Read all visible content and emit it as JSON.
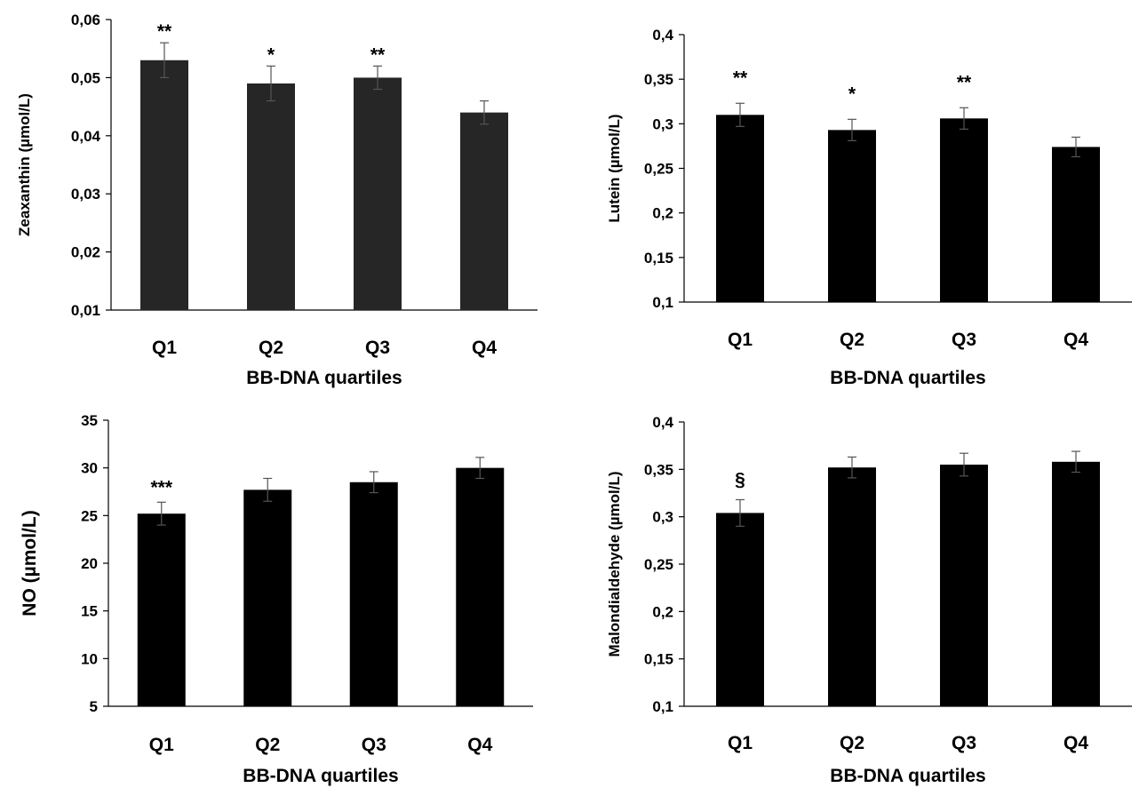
{
  "chart_data": [
    {
      "type": "bar",
      "categories": [
        "Q1",
        "Q2",
        "Q3",
        "Q4"
      ],
      "values": [
        0.053,
        0.049,
        0.05,
        0.044
      ],
      "errors": [
        0.003,
        0.003,
        0.002,
        0.002
      ],
      "annotations": [
        "**",
        "*",
        "**",
        ""
      ],
      "xlabel": "BB-DNA quartiles",
      "ylabel": "Zeaxanthin (µmol/L)",
      "ylim": [
        0.01,
        0.06
      ],
      "yticks": [
        0.01,
        0.02,
        0.03,
        0.04,
        0.05,
        0.06
      ],
      "ytick_labels": [
        "0,01",
        "0,02",
        "0,03",
        "0,04",
        "0,05",
        "0,06"
      ],
      "bar_color": "#262626",
      "grid": false
    },
    {
      "type": "bar",
      "categories": [
        "Q1",
        "Q2",
        "Q3",
        "Q4"
      ],
      "values": [
        0.31,
        0.293,
        0.306,
        0.274
      ],
      "errors": [
        0.013,
        0.012,
        0.012,
        0.011
      ],
      "annotations": [
        "**",
        "*",
        "**",
        ""
      ],
      "xlabel": "BB-DNA quartiles",
      "ylabel": "Lutein  (µmol/L)",
      "ylim": [
        0.1,
        0.4
      ],
      "yticks": [
        0.1,
        0.15,
        0.2,
        0.25,
        0.3,
        0.35,
        0.4
      ],
      "ytick_labels": [
        "0,1",
        "0,15",
        "0,2",
        "0,25",
        "0,3",
        "0,35",
        "0,4"
      ],
      "bar_color": "#000000",
      "grid": false
    },
    {
      "type": "bar",
      "categories": [
        "Q1",
        "Q2",
        "Q3",
        "Q4"
      ],
      "values": [
        25.2,
        27.7,
        28.5,
        30.0
      ],
      "errors": [
        1.2,
        1.2,
        1.1,
        1.1
      ],
      "annotations": [
        "***",
        "",
        "",
        ""
      ],
      "xlabel": "BB-DNA quartiles",
      "ylabel": "NO (µmol/L)",
      "ylim": [
        5,
        35
      ],
      "yticks": [
        5,
        10,
        15,
        20,
        25,
        30,
        35
      ],
      "ytick_labels": [
        "5",
        "10",
        "15",
        "20",
        "25",
        "30",
        "35"
      ],
      "bar_color": "#000000",
      "grid": false
    },
    {
      "type": "bar",
      "categories": [
        "Q1",
        "Q2",
        "Q3",
        "Q4"
      ],
      "values": [
        0.304,
        0.352,
        0.355,
        0.358
      ],
      "errors": [
        0.014,
        0.011,
        0.012,
        0.011
      ],
      "annotations": [
        "§",
        "",
        "",
        ""
      ],
      "xlabel": "BB-DNA quartiles",
      "ylabel": "Malondialdehyde  (µmol/L)",
      "ylim": [
        0.1,
        0.4
      ],
      "yticks": [
        0.1,
        0.15,
        0.2,
        0.25,
        0.3,
        0.35,
        0.4
      ],
      "ytick_labels": [
        "0,1",
        "0,15",
        "0,2",
        "0,25",
        "0,3",
        "0,35",
        "0,4"
      ],
      "bar_color": "#000000",
      "grid": false
    }
  ]
}
